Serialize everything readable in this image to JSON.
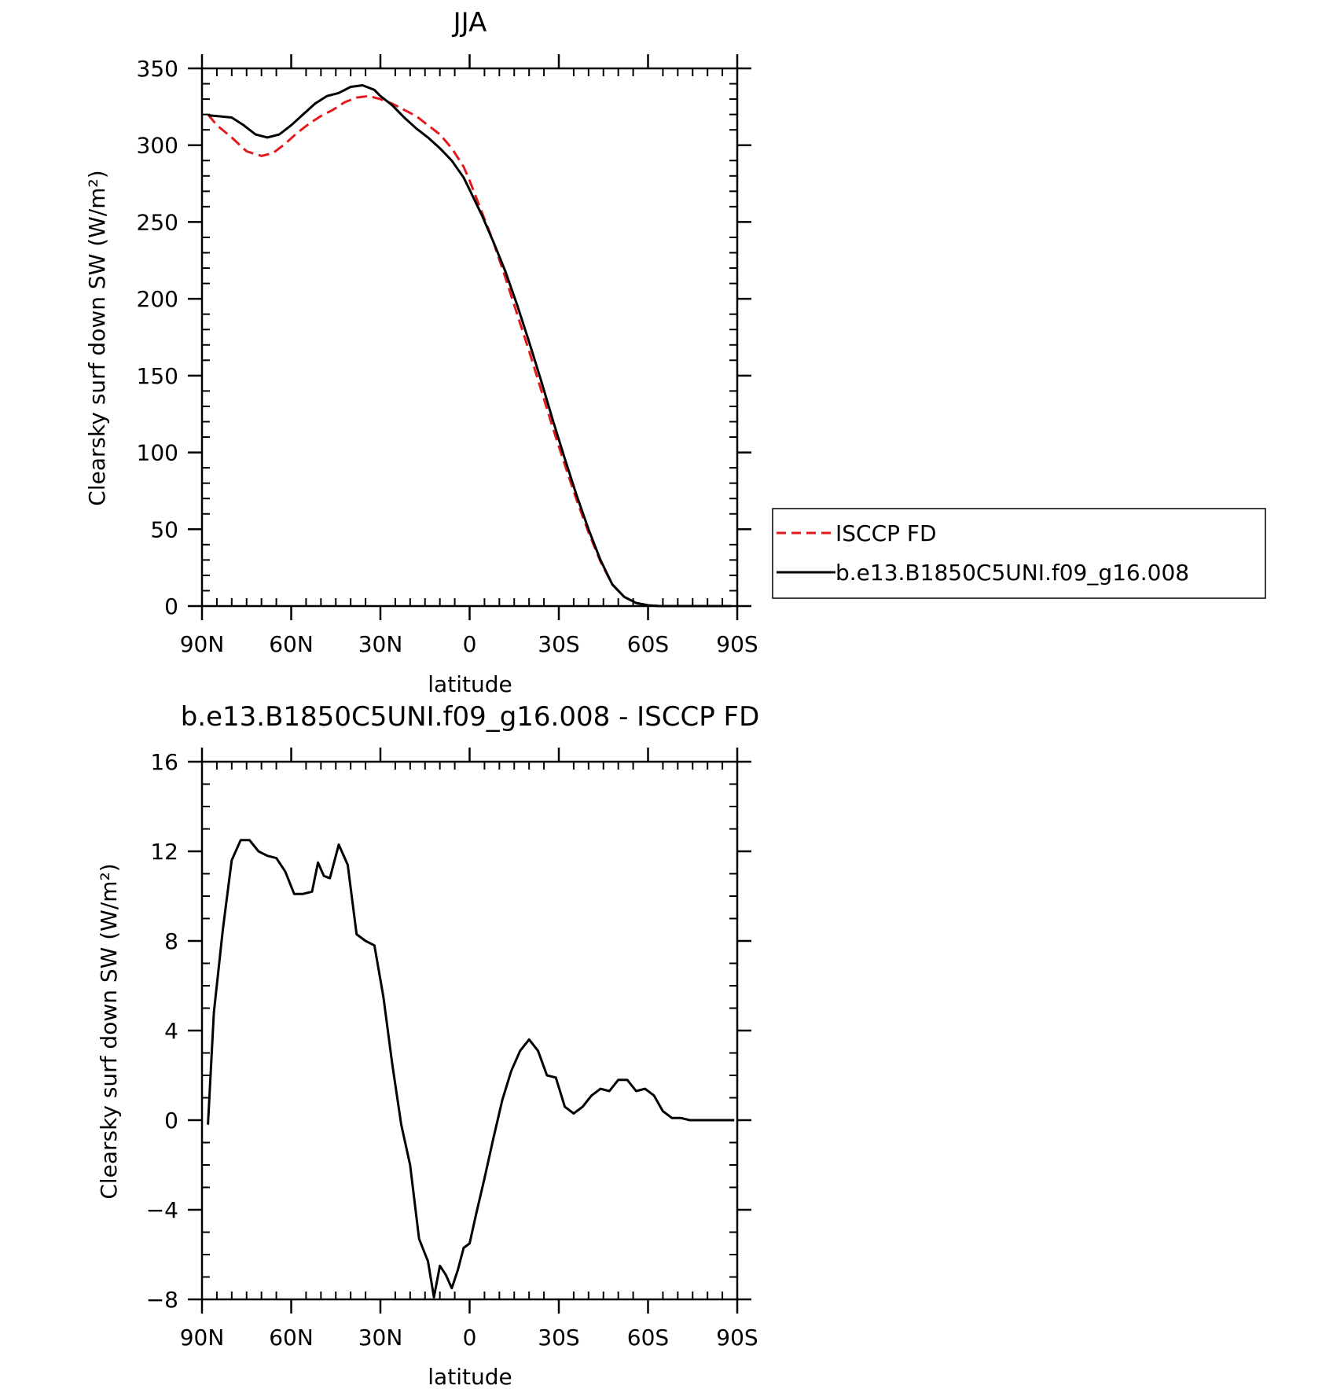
{
  "chart_data": [
    {
      "type": "line",
      "title": "JJA",
      "xlabel": "latitude",
      "ylabel": "Clearsky surf down SW (W/m²)",
      "xlim": [
        90,
        -90
      ],
      "ylim": [
        0,
        350
      ],
      "x_ticks": [
        90,
        60,
        30,
        0,
        -30,
        -60,
        -90
      ],
      "x_tick_labels": [
        "90N",
        "60N",
        "30N",
        "0",
        "30S",
        "60S",
        "90S"
      ],
      "y_ticks": [
        0,
        50,
        100,
        150,
        200,
        250,
        300,
        350
      ],
      "y_tick_labels": [
        "0",
        "50",
        "100",
        "150",
        "200",
        "250",
        "300",
        "350"
      ],
      "legend": "right",
      "series": [
        {
          "name": "ISCCP FD",
          "color": "#e31a1c",
          "dash": "dashed",
          "x": [
            88,
            85,
            80,
            75,
            70,
            66,
            62,
            58,
            54,
            50,
            46,
            42,
            38,
            34,
            30,
            26,
            22,
            18,
            14,
            10,
            6,
            2,
            0,
            -4,
            -8,
            -12,
            -16,
            -20,
            -24,
            -28,
            -32,
            -36,
            -40,
            -44,
            -48,
            -52,
            -56,
            -60,
            -64,
            -68,
            -72,
            -76,
            -80,
            -84,
            -88
          ],
          "values": [
            320,
            313,
            305,
            296,
            293,
            295,
            301,
            308,
            314,
            319,
            323,
            328,
            331,
            332,
            330,
            327,
            323,
            319,
            313,
            307,
            298,
            286,
            277,
            257,
            237,
            214,
            190,
            166,
            141,
            116,
            92,
            69,
            48,
            29,
            14,
            6,
            2,
            0.5,
            0,
            0,
            0,
            0,
            0,
            0,
            0
          ]
        },
        {
          "name": "b.e13.B1850C5UNI.f09_g16.008",
          "color": "#000000",
          "dash": "solid",
          "x": [
            88,
            85,
            80,
            76,
            72,
            68,
            64,
            60,
            56,
            52,
            48,
            44,
            40,
            36,
            32,
            30,
            26,
            22,
            18,
            14,
            10,
            6,
            2,
            0,
            -4,
            -8,
            -12,
            -16,
            -20,
            -24,
            -28,
            -32,
            -36,
            -40,
            -44,
            -48,
            -52,
            -56,
            -60,
            -64,
            -68,
            -72,
            -76,
            -80,
            -84,
            -88
          ],
          "values": [
            319.5,
            319,
            318,
            313,
            307,
            305,
            307,
            313,
            320,
            327,
            332,
            334,
            338,
            339,
            336,
            332,
            326,
            318,
            311,
            305,
            298,
            290,
            279,
            271,
            255,
            237,
            218,
            196,
            172,
            147,
            121,
            96,
            72,
            50,
            30,
            14,
            6,
            2,
            0.5,
            0,
            0,
            0,
            0,
            0,
            0,
            0
          ]
        }
      ]
    },
    {
      "type": "line",
      "title": "b.e13.B1850C5UNI.f09_g16.008 - ISCCP FD",
      "xlabel": "latitude",
      "ylabel": "Clearsky surf down SW (W/m²)",
      "xlim": [
        90,
        -90
      ],
      "ylim": [
        -8,
        16
      ],
      "x_ticks": [
        90,
        60,
        30,
        0,
        -30,
        -60,
        -90
      ],
      "x_tick_labels": [
        "90N",
        "60N",
        "30N",
        "0",
        "30S",
        "60S",
        "90S"
      ],
      "y_ticks": [
        -8,
        -4,
        0,
        4,
        8,
        12,
        16
      ],
      "y_tick_labels": [
        "−8",
        "−4",
        "0",
        "4",
        "8",
        "12",
        "16"
      ],
      "series": [
        {
          "color": "#000000",
          "dash": "solid",
          "x": [
            88,
            86,
            83,
            80,
            77,
            74,
            71,
            68,
            65,
            62,
            59,
            56,
            53,
            51,
            49,
            47,
            44,
            41,
            38,
            35,
            32,
            29,
            26,
            23,
            20,
            17,
            14,
            12,
            10,
            8,
            6,
            4,
            2,
            0,
            -2,
            -5,
            -8,
            -11,
            -14,
            -17,
            -20,
            -23,
            -26,
            -29,
            -32,
            -35,
            -38,
            -41,
            -44,
            -47,
            -50,
            -53,
            -56,
            -59,
            -62,
            -65,
            -68,
            -71,
            -74,
            -77,
            -80,
            -83,
            -86,
            -89
          ],
          "values": [
            -0.2,
            4.8,
            8.5,
            11.6,
            12.5,
            12.5,
            12.0,
            11.8,
            11.7,
            11.1,
            10.1,
            10.1,
            10.2,
            11.5,
            10.9,
            10.8,
            12.3,
            11.4,
            8.3,
            8.0,
            7.8,
            5.5,
            2.5,
            -0.2,
            -2.0,
            -5.3,
            -6.3,
            -7.9,
            -6.5,
            -6.9,
            -7.5,
            -6.7,
            -5.7,
            -5.5,
            -4.3,
            -2.6,
            -0.8,
            0.9,
            2.2,
            3.1,
            3.6,
            3.1,
            2.0,
            1.9,
            0.6,
            0.3,
            0.6,
            1.1,
            1.4,
            1.3,
            1.8,
            1.8,
            1.3,
            1.4,
            1.1,
            0.4,
            0.1,
            0.1,
            0.0,
            0.0,
            0.0,
            0.0,
            0.0,
            0.0
          ]
        }
      ]
    }
  ]
}
